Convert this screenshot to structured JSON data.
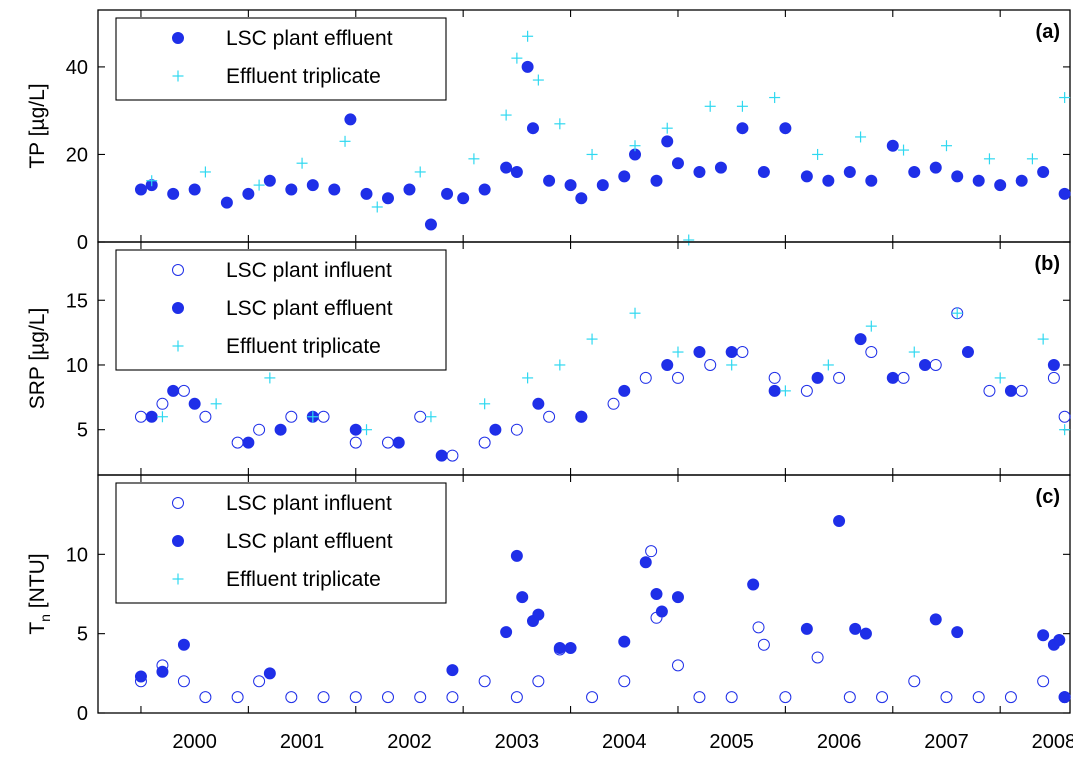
{
  "colors": {
    "effluent": "#1f2fe8",
    "influent": "#1f2fe8",
    "triplicate": "#2fd8f0"
  },
  "x_axis": {
    "ticks": [
      "2000",
      "2001",
      "2002",
      "2003",
      "2004",
      "2005",
      "2006",
      "2007",
      "2008"
    ],
    "range": [
      1999.6,
      2008.65
    ]
  },
  "chart_data": [
    {
      "type": "scatter",
      "tag": "(a)",
      "ylabel": "TP [µg/L]",
      "ylim": [
        0,
        53
      ],
      "yticks": [
        "0",
        "20",
        "40"
      ],
      "ytick_values": [
        0,
        20,
        40
      ],
      "legend": [
        "LSC plant effluent",
        "Effluent triplicate"
      ],
      "series": [
        {
          "name": "LSC plant effluent",
          "marker": "filled-circle",
          "x": [
            2000.0,
            2000.1,
            2000.3,
            2000.5,
            2000.8,
            2001.0,
            2001.2,
            2001.4,
            2001.6,
            2001.8,
            2001.95,
            2002.1,
            2002.3,
            2002.5,
            2002.7,
            2002.85,
            2003.0,
            2003.2,
            2003.4,
            2003.5,
            2003.6,
            2003.65,
            2003.8,
            2004.0,
            2004.1,
            2004.3,
            2004.5,
            2004.6,
            2004.8,
            2004.9,
            2005.0,
            2005.2,
            2005.4,
            2005.6,
            2005.8,
            2006.0,
            2006.2,
            2006.4,
            2006.6,
            2006.8,
            2007.0,
            2007.2,
            2007.4,
            2007.6,
            2007.8,
            2008.0,
            2008.2,
            2008.4,
            2008.6
          ],
          "y": [
            12,
            13,
            11,
            12,
            9,
            11,
            14,
            12,
            13,
            12,
            28,
            11,
            10,
            12,
            4,
            11,
            10,
            12,
            17,
            16,
            40,
            26,
            14,
            13,
            10,
            13,
            15,
            20,
            14,
            23,
            18,
            16,
            17,
            26,
            16,
            26,
            15,
            14,
            16,
            14,
            22,
            16,
            17,
            15,
            14,
            13,
            14,
            16,
            11
          ]
        },
        {
          "name": "Effluent triplicate",
          "marker": "plus",
          "x": [
            2000.1,
            2000.6,
            2001.1,
            2001.5,
            2001.9,
            2002.2,
            2002.6,
            2003.1,
            2003.4,
            2003.5,
            2003.6,
            2003.7,
            2003.9,
            2004.2,
            2004.6,
            2004.9,
            2005.1,
            2005.3,
            2005.6,
            2005.9,
            2006.3,
            2006.7,
            2007.1,
            2007.5,
            2007.9,
            2008.3,
            2008.6
          ],
          "y": [
            14,
            16,
            13,
            18,
            23,
            8,
            16,
            19,
            29,
            42,
            47,
            37,
            27,
            20,
            22,
            26,
            0,
            31,
            31,
            33,
            20,
            24,
            21,
            22,
            19,
            19,
            33
          ]
        }
      ]
    },
    {
      "type": "scatter",
      "tag": "(b)",
      "ylabel": "SRP [µg/L]",
      "ylim": [
        1.5,
        19.5
      ],
      "yticks": [
        "5",
        "10",
        "15"
      ],
      "ytick_values": [
        5,
        10,
        15
      ],
      "legend": [
        "LSC plant influent",
        "LSC plant effluent",
        "Effluent triplicate"
      ],
      "series": [
        {
          "name": "LSC plant influent",
          "marker": "open-circle",
          "x": [
            2000.0,
            2000.2,
            2000.4,
            2000.6,
            2000.9,
            2001.1,
            2001.4,
            2001.7,
            2002.0,
            2002.3,
            2002.6,
            2002.9,
            2003.2,
            2003.5,
            2003.8,
            2004.1,
            2004.4,
            2004.7,
            2005.0,
            2005.3,
            2005.6,
            2005.9,
            2006.2,
            2006.5,
            2006.8,
            2007.1,
            2007.4,
            2007.6,
            2007.9,
            2008.2,
            2008.5,
            2008.6
          ],
          "y": [
            6,
            7,
            8,
            6,
            4,
            5,
            6,
            6,
            4,
            4,
            6,
            3,
            4,
            5,
            6,
            6,
            7,
            9,
            9,
            10,
            11,
            9,
            8,
            9,
            11,
            9,
            10,
            14,
            8,
            8,
            9,
            6
          ]
        },
        {
          "name": "LSC plant effluent",
          "marker": "filled-circle",
          "x": [
            2000.1,
            2000.3,
            2000.5,
            2001.0,
            2001.3,
            2001.6,
            2002.0,
            2002.4,
            2002.8,
            2003.3,
            2003.7,
            2004.1,
            2004.5,
            2004.9,
            2005.2,
            2005.5,
            2005.9,
            2006.3,
            2006.7,
            2007.0,
            2007.3,
            2007.7,
            2008.1,
            2008.5
          ],
          "y": [
            6,
            8,
            7,
            4,
            5,
            6,
            5,
            4,
            3,
            5,
            7,
            6,
            8,
            10,
            11,
            11,
            8,
            9,
            12,
            9,
            10,
            11,
            8,
            10
          ]
        },
        {
          "name": "Effluent triplicate",
          "marker": "plus",
          "x": [
            2000.2,
            2000.7,
            2001.2,
            2001.6,
            2002.1,
            2002.7,
            2003.2,
            2003.6,
            2003.9,
            2004.2,
            2004.6,
            2005.0,
            2005.5,
            2006.0,
            2006.4,
            2006.8,
            2007.2,
            2007.6,
            2008.0,
            2008.4,
            2008.6
          ],
          "y": [
            6,
            7,
            9,
            6,
            5,
            6,
            7,
            9,
            10,
            12,
            14,
            11,
            10,
            8,
            10,
            13,
            11,
            14,
            9,
            12,
            5
          ]
        }
      ]
    },
    {
      "type": "scatter",
      "tag": "(c)",
      "ylabel": "T",
      "ylabel_sub": "n",
      "ylabel_suffix": " [NTU]",
      "ylim": [
        0,
        15
      ],
      "yticks": [
        "0",
        "5",
        "10"
      ],
      "ytick_values": [
        0,
        5,
        10
      ],
      "legend": [
        "LSC plant influent",
        "LSC plant effluent",
        "Effluent triplicate"
      ],
      "series": [
        {
          "name": "LSC plant influent",
          "marker": "open-circle",
          "x": [
            2000.0,
            2000.2,
            2000.4,
            2000.6,
            2000.9,
            2001.1,
            2001.4,
            2001.7,
            2002.0,
            2002.3,
            2002.6,
            2002.9,
            2003.2,
            2003.5,
            2003.7,
            2003.9,
            2004.2,
            2004.5,
            2004.75,
            2004.8,
            2005.0,
            2005.2,
            2005.5,
            2005.75,
            2005.8,
            2006.0,
            2006.3,
            2006.6,
            2006.9,
            2007.2,
            2007.5,
            2007.8,
            2008.1,
            2008.4,
            2008.6
          ],
          "y": [
            2,
            3,
            2,
            1,
            1,
            2,
            1,
            1,
            1,
            1,
            1,
            1,
            2,
            1,
            2,
            4,
            1,
            2,
            10.2,
            6,
            3,
            1,
            1,
            5.4,
            4.3,
            1,
            3.5,
            1,
            1,
            2,
            1,
            1,
            1,
            2,
            1
          ]
        },
        {
          "name": "LSC plant effluent",
          "marker": "filled-circle",
          "x": [
            2000.0,
            2000.2,
            2000.4,
            2001.2,
            2002.9,
            2003.4,
            2003.5,
            2003.55,
            2003.65,
            2003.7,
            2003.9,
            2004.0,
            2004.5,
            2004.7,
            2004.8,
            2004.85,
            2005.0,
            2005.7,
            2006.2,
            2006.5,
            2006.65,
            2006.75,
            2007.4,
            2007.6,
            2008.4,
            2008.5,
            2008.55,
            2008.6
          ],
          "y": [
            2.3,
            2.6,
            4.3,
            2.5,
            2.7,
            5.1,
            9.9,
            7.3,
            5.8,
            6.2,
            4.1,
            4.1,
            4.5,
            9.5,
            7.5,
            6.4,
            7.3,
            8.1,
            5.3,
            12.1,
            5.3,
            5.0,
            5.9,
            5.1,
            4.9,
            4.3,
            4.6,
            1.0
          ]
        },
        {
          "name": "Effluent triplicate",
          "marker": "plus",
          "x": [],
          "y": []
        }
      ]
    }
  ]
}
